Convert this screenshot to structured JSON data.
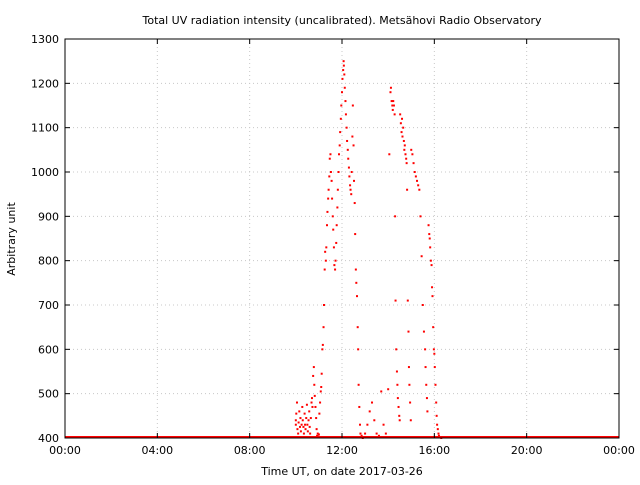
{
  "chart_data": {
    "type": "scatter",
    "title": "Total UV radiation intensity (uncalibrated). Metsähovi Radio Observatory",
    "xlabel": "Time UT, on date 2017-03-26",
    "ylabel": "Arbitrary unit",
    "x_unit": "hours UT",
    "xlim": [
      0,
      24
    ],
    "ylim": [
      400,
      1300
    ],
    "x_tick_values": [
      0,
      4,
      8,
      12,
      16,
      20,
      24
    ],
    "x_tick_labels": [
      "00:00",
      "04:00",
      "08:00",
      "12:00",
      "16:00",
      "20:00",
      "00:00"
    ],
    "y_tick_values": [
      400,
      500,
      600,
      700,
      800,
      900,
      1000,
      1100,
      1200,
      1300
    ],
    "y_tick_labels": [
      "400",
      "500",
      "600",
      "700",
      "800",
      "900",
      "1000",
      "1100",
      "1200",
      "1300"
    ],
    "grid": true,
    "marker_color": "#ff0000",
    "baseline": {
      "value": 400,
      "x_from": 0,
      "x_to": 24
    },
    "series": [
      {
        "points": [
          [
            10.0,
            430
          ],
          [
            10.0,
            440
          ],
          [
            10.02,
            455
          ],
          [
            10.05,
            480
          ],
          [
            10.07,
            420
          ],
          [
            10.1,
            410
          ],
          [
            10.12,
            435
          ],
          [
            10.15,
            460
          ],
          [
            10.18,
            425
          ],
          [
            10.2,
            445
          ],
          [
            10.22,
            415
          ],
          [
            10.25,
            430
          ],
          [
            10.28,
            470
          ],
          [
            10.3,
            440
          ],
          [
            10.33,
            425
          ],
          [
            10.35,
            410
          ],
          [
            10.38,
            455
          ],
          [
            10.4,
            430
          ],
          [
            10.42,
            420
          ],
          [
            10.45,
            445
          ],
          [
            10.48,
            475
          ],
          [
            10.5,
            430
          ],
          [
            10.52,
            415
          ],
          [
            10.55,
            440
          ],
          [
            10.58,
            460
          ],
          [
            10.6,
            425
          ],
          [
            10.62,
            410
          ],
          [
            10.65,
            445
          ],
          [
            10.68,
            480
          ],
          [
            10.7,
            490
          ],
          [
            10.72,
            470
          ],
          [
            10.75,
            540
          ],
          [
            10.78,
            560
          ],
          [
            10.8,
            520
          ],
          [
            10.82,
            495
          ],
          [
            10.85,
            470
          ],
          [
            10.88,
            445
          ],
          [
            10.9,
            420
          ],
          [
            10.92,
            405
          ],
          [
            10.95,
            410
          ],
          [
            10.97,
            403
          ],
          [
            11.0,
            408
          ],
          [
            11.02,
            455
          ],
          [
            11.05,
            480
          ],
          [
            11.08,
            505
          ],
          [
            11.1,
            515
          ],
          [
            11.12,
            545
          ],
          [
            11.15,
            600
          ],
          [
            11.17,
            610
          ],
          [
            11.2,
            650
          ],
          [
            11.22,
            700
          ],
          [
            11.25,
            780
          ],
          [
            11.27,
            820
          ],
          [
            11.3,
            800
          ],
          [
            11.32,
            830
          ],
          [
            11.35,
            880
          ],
          [
            11.37,
            910
          ],
          [
            11.4,
            940
          ],
          [
            11.42,
            960
          ],
          [
            11.45,
            990
          ],
          [
            11.47,
            1030
          ],
          [
            11.5,
            1040
          ],
          [
            11.52,
            1000
          ],
          [
            11.55,
            980
          ],
          [
            11.57,
            940
          ],
          [
            11.6,
            900
          ],
          [
            11.62,
            870
          ],
          [
            11.65,
            830
          ],
          [
            11.67,
            790
          ],
          [
            11.7,
            780
          ],
          [
            11.72,
            800
          ],
          [
            11.75,
            840
          ],
          [
            11.77,
            880
          ],
          [
            11.8,
            920
          ],
          [
            11.82,
            960
          ],
          [
            11.85,
            1000
          ],
          [
            11.87,
            1040
          ],
          [
            11.9,
            1060
          ],
          [
            11.92,
            1090
          ],
          [
            11.95,
            1120
          ],
          [
            11.97,
            1150
          ],
          [
            12.0,
            1180
          ],
          [
            12.02,
            1210
          ],
          [
            12.05,
            1230
          ],
          [
            12.07,
            1250
          ],
          [
            12.08,
            1240
          ],
          [
            12.1,
            1220
          ],
          [
            12.12,
            1190
          ],
          [
            12.15,
            1160
          ],
          [
            12.17,
            1130
          ],
          [
            12.2,
            1100
          ],
          [
            12.22,
            1070
          ],
          [
            12.25,
            1050
          ],
          [
            12.27,
            1030
          ],
          [
            12.3,
            1010
          ],
          [
            12.32,
            990
          ],
          [
            12.35,
            970
          ],
          [
            12.37,
            960
          ],
          [
            12.4,
            950
          ],
          [
            12.42,
            1000
          ],
          [
            12.45,
            1080
          ],
          [
            12.47,
            1150
          ],
          [
            12.5,
            1060
          ],
          [
            12.52,
            980
          ],
          [
            12.55,
            930
          ],
          [
            12.57,
            860
          ],
          [
            12.6,
            780
          ],
          [
            12.62,
            750
          ],
          [
            12.65,
            720
          ],
          [
            12.68,
            650
          ],
          [
            12.7,
            600
          ],
          [
            12.72,
            520
          ],
          [
            12.75,
            470
          ],
          [
            12.78,
            430
          ],
          [
            12.8,
            410
          ],
          [
            12.85,
            405
          ],
          [
            12.9,
            400
          ],
          [
            13.0,
            410
          ],
          [
            13.1,
            430
          ],
          [
            13.2,
            460
          ],
          [
            13.3,
            480
          ],
          [
            13.4,
            440
          ],
          [
            13.5,
            410
          ],
          [
            13.6,
            405
          ],
          [
            13.7,
            505
          ],
          [
            13.8,
            430
          ],
          [
            13.9,
            410
          ],
          [
            14.0,
            510
          ],
          [
            14.05,
            1040
          ],
          [
            14.1,
            1180
          ],
          [
            14.12,
            1190
          ],
          [
            14.15,
            1160
          ],
          [
            14.18,
            1150
          ],
          [
            14.2,
            1140
          ],
          [
            14.22,
            1160
          ],
          [
            14.25,
            1150
          ],
          [
            14.28,
            1130
          ],
          [
            14.3,
            900
          ],
          [
            14.32,
            710
          ],
          [
            14.35,
            600
          ],
          [
            14.38,
            550
          ],
          [
            14.4,
            520
          ],
          [
            14.42,
            490
          ],
          [
            14.45,
            470
          ],
          [
            14.48,
            450
          ],
          [
            14.5,
            440
          ],
          [
            14.52,
            1130
          ],
          [
            14.55,
            1110
          ],
          [
            14.58,
            1090
          ],
          [
            14.6,
            1120
          ],
          [
            14.62,
            1080
          ],
          [
            14.65,
            1100
          ],
          [
            14.68,
            1070
          ],
          [
            14.7,
            1050
          ],
          [
            14.72,
            1060
          ],
          [
            14.75,
            1040
          ],
          [
            14.78,
            1030
          ],
          [
            14.8,
            1020
          ],
          [
            14.82,
            960
          ],
          [
            14.85,
            710
          ],
          [
            14.88,
            640
          ],
          [
            14.9,
            560
          ],
          [
            14.92,
            520
          ],
          [
            14.95,
            480
          ],
          [
            14.98,
            440
          ],
          [
            15.0,
            1050
          ],
          [
            15.05,
            1040
          ],
          [
            15.1,
            1020
          ],
          [
            15.15,
            1000
          ],
          [
            15.2,
            990
          ],
          [
            15.25,
            980
          ],
          [
            15.3,
            970
          ],
          [
            15.35,
            960
          ],
          [
            15.4,
            900
          ],
          [
            15.45,
            810
          ],
          [
            15.5,
            700
          ],
          [
            15.55,
            640
          ],
          [
            15.6,
            600
          ],
          [
            15.62,
            560
          ],
          [
            15.65,
            520
          ],
          [
            15.68,
            490
          ],
          [
            15.7,
            460
          ],
          [
            15.75,
            880
          ],
          [
            15.78,
            860
          ],
          [
            15.8,
            850
          ],
          [
            15.82,
            830
          ],
          [
            15.85,
            800
          ],
          [
            15.88,
            790
          ],
          [
            15.9,
            740
          ],
          [
            15.92,
            720
          ],
          [
            15.95,
            650
          ],
          [
            15.98,
            600
          ],
          [
            16.0,
            590
          ],
          [
            16.02,
            560
          ],
          [
            16.05,
            520
          ],
          [
            16.08,
            480
          ],
          [
            16.1,
            450
          ],
          [
            16.12,
            430
          ],
          [
            16.15,
            420
          ],
          [
            16.18,
            410
          ],
          [
            16.2,
            405
          ],
          [
            16.25,
            402
          ],
          [
            16.3,
            400
          ]
        ]
      }
    ]
  }
}
